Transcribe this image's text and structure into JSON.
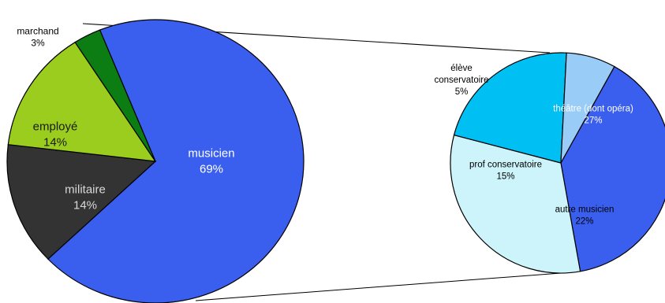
{
  "chart_data": [
    {
      "type": "pie",
      "title": "",
      "slices": [
        {
          "name": "musicien",
          "value": 69,
          "label": "69%",
          "color": "#3A5FEF",
          "text_color": "#FFFFFF"
        },
        {
          "name": "militaire",
          "value": 14,
          "label": "14%",
          "color": "#333333",
          "text_color": "#D9D9D9"
        },
        {
          "name": "employé",
          "value": 14,
          "label": "14%",
          "color": "#9ACD1E",
          "text_color": "#1A1A1A"
        },
        {
          "name": "marchand",
          "value": 3,
          "label": "3%",
          "color": "#0B7D12",
          "text_color": "#000000"
        }
      ]
    },
    {
      "type": "pie",
      "title": "",
      "breakdown_of": "musicien",
      "slices": [
        {
          "name": "théâtre (dont opéra)",
          "value": 27,
          "label": "27%",
          "color": "#3A5FEF",
          "text_color": "#FFFFFF"
        },
        {
          "name": "autre musicien",
          "value": 22,
          "label": "22%",
          "color": "#CCF4FA",
          "text_color": "#000000"
        },
        {
          "name": "prof conservatoire",
          "value": 15,
          "label": "15%",
          "color": "#00BFF2",
          "text_color": "#000000"
        },
        {
          "name": "élève conservatoire",
          "value": 5,
          "label": "5%",
          "color": "#99CCF7",
          "text_color": "#000000"
        }
      ]
    }
  ]
}
